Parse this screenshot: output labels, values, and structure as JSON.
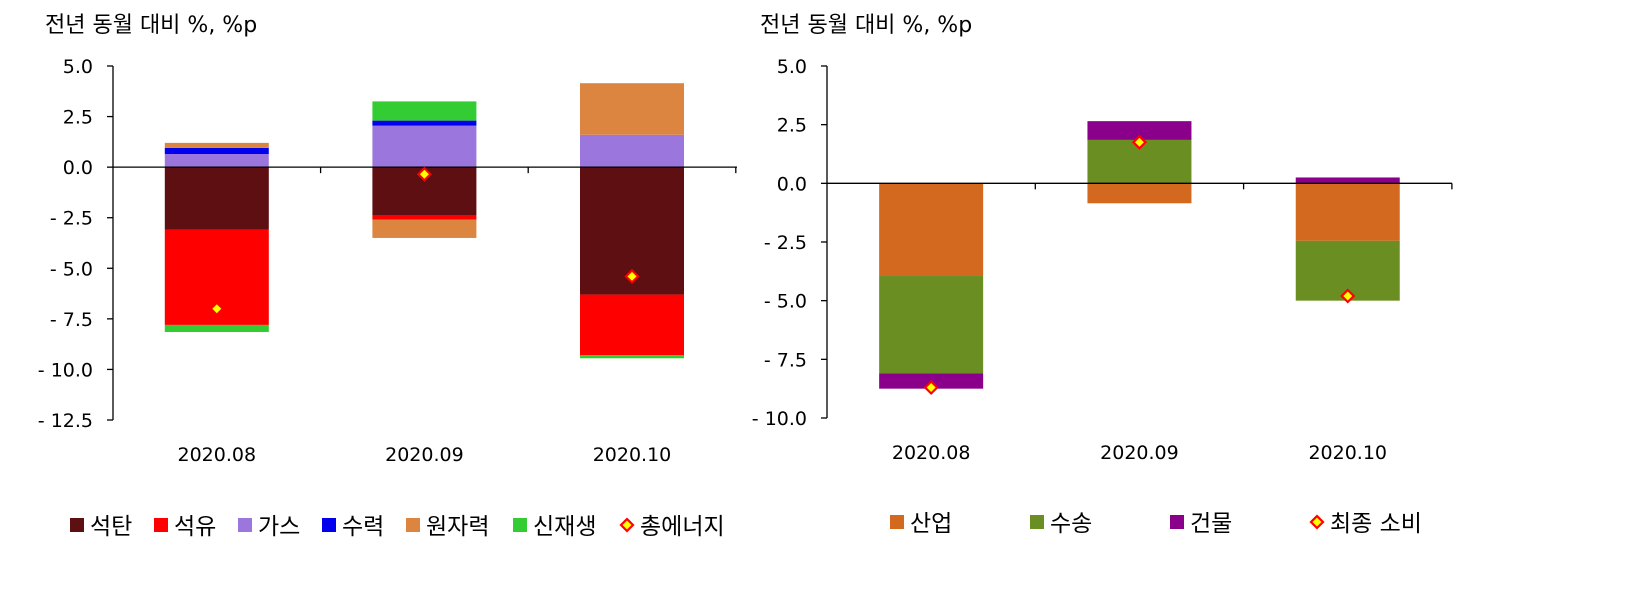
{
  "chart_data": [
    {
      "type": "bar",
      "stacked": true,
      "unit_label": "전년 동월 대비 %, %p",
      "categories": [
        "2020.08",
        "2020.09",
        "2020.10"
      ],
      "ylim": [
        -12.5,
        5.0
      ],
      "yticks": [
        5.0,
        2.5,
        0.0,
        -2.5,
        -5.0,
        -7.5,
        -10.0,
        -12.5
      ],
      "ytick_labels": [
        "5.0",
        "2.5",
        "0.0",
        "- 2.5",
        "- 5.0",
        "- 7.5",
        "- 10.0",
        "- 12.5"
      ],
      "legend_position": "bottom",
      "series": [
        {
          "name": "석탄",
          "color": "#5e0f11",
          "values": [
            -3.1,
            -2.4,
            -6.3
          ]
        },
        {
          "name": "석유",
          "color": "#ff0000",
          "values": [
            -4.7,
            -0.2,
            -3.0
          ]
        },
        {
          "name": "가스",
          "color": "#9a76dd",
          "values": [
            0.65,
            2.05,
            1.6
          ]
        },
        {
          "name": "수력",
          "color": "#0000ee",
          "values": [
            0.3,
            0.25,
            0.0
          ]
        },
        {
          "name": "원자력",
          "color": "#dc8540",
          "values": [
            0.25,
            -0.9,
            2.55
          ]
        },
        {
          "name": "신재생",
          "color": "#33cc33",
          "values": [
            -0.35,
            0.95,
            -0.15
          ]
        }
      ],
      "markers": {
        "name": "총에너지",
        "values": [
          -7.0,
          -0.35,
          -5.4
        ]
      }
    },
    {
      "type": "bar",
      "stacked": true,
      "unit_label": "전년 동월 대비 %, %p",
      "categories": [
        "2020.08",
        "2020.09",
        "2020.10"
      ],
      "ylim": [
        -10.0,
        5.0
      ],
      "yticks": [
        5.0,
        2.5,
        0.0,
        -2.5,
        -5.0,
        -7.5,
        -10.0
      ],
      "ytick_labels": [
        "5.0",
        "2.5",
        "0.0",
        "- 2.5",
        "- 5.0",
        "- 7.5",
        "- 10.0"
      ],
      "legend_position": "bottom",
      "series": [
        {
          "name": "산업",
          "color": "#d2691e",
          "values": [
            -3.95,
            -0.85,
            -2.45
          ]
        },
        {
          "name": "수송",
          "color": "#6b8e23",
          "values": [
            -4.15,
            1.85,
            -2.55
          ]
        },
        {
          "name": "건물",
          "color": "#8b008b",
          "values": [
            -0.65,
            0.8,
            0.25
          ]
        }
      ],
      "markers": {
        "name": "최종 소비",
        "values": [
          -8.7,
          1.75,
          -4.8
        ]
      }
    }
  ]
}
